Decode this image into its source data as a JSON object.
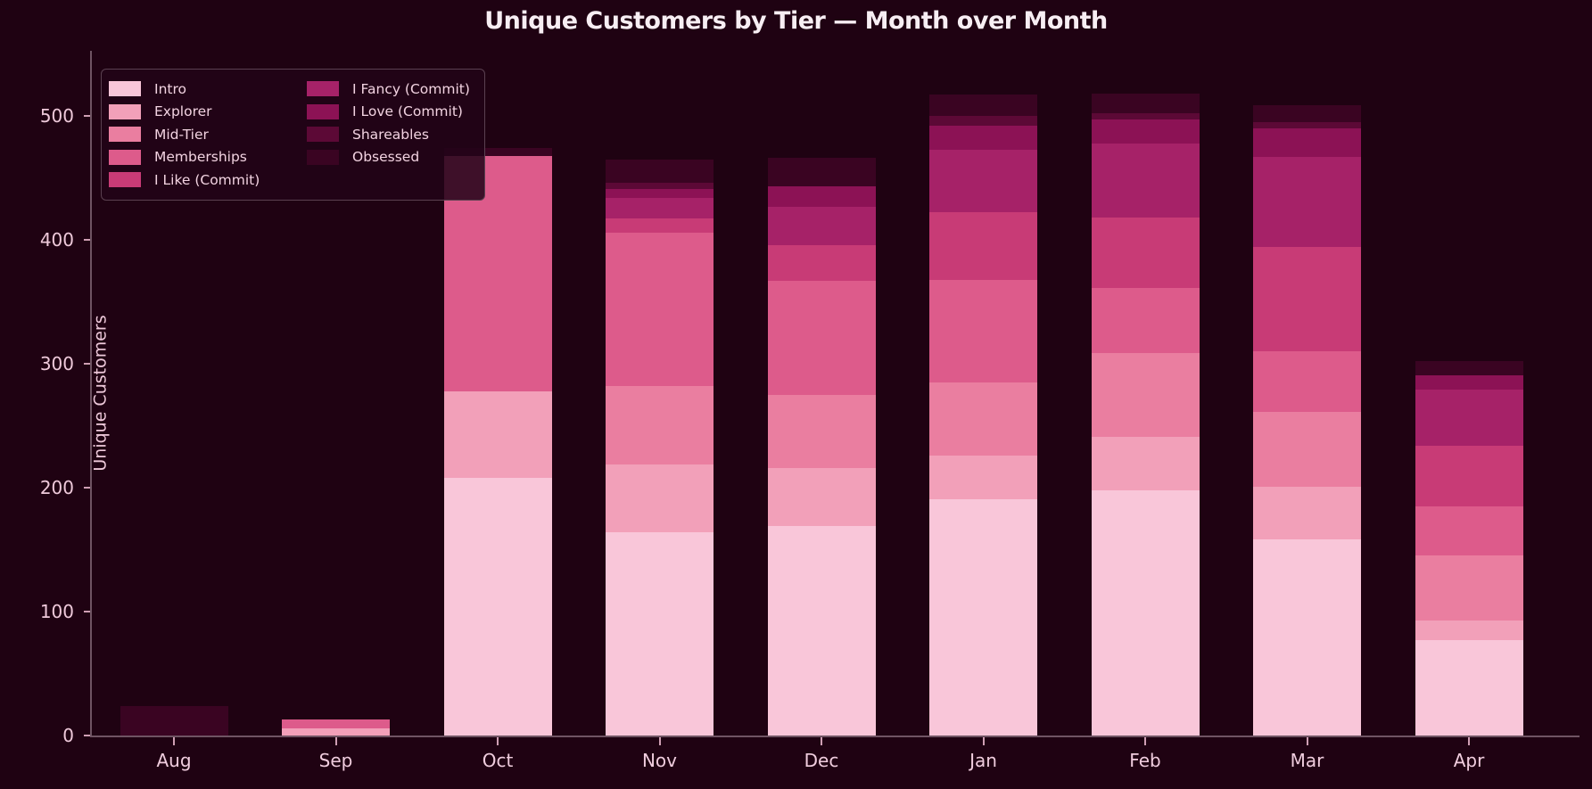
{
  "title": "Unique Customers by Tier — Month over Month",
  "ylabel": "Unique Customers",
  "colors": {
    "background": "#1f0212",
    "axis_spine": "#6f5463",
    "tick_mark": "#cf9fb4",
    "y_tick_label": "#eec9da",
    "x_tick_label": "#f0cdde",
    "title_text": "#f7eef3",
    "legend_border": "#5a4050",
    "legend_background": "rgba(34,4,24,0.85)",
    "legend_text": "#f2d3e1"
  },
  "chart_data": {
    "type": "bar",
    "stacked": true,
    "title": "Unique Customers by Tier — Month over Month",
    "xlabel": "",
    "ylabel": "Unique Customers",
    "categories": [
      "Aug",
      "Sep",
      "Oct",
      "Nov",
      "Dec",
      "Jan",
      "Feb",
      "Mar",
      "Apr"
    ],
    "series": [
      {
        "name": "Intro",
        "color": "#f9c6d9",
        "values": [
          0,
          0,
          208,
          164,
          169,
          191,
          198,
          158,
          77
        ]
      },
      {
        "name": "Explorer",
        "color": "#f2a0b9",
        "values": [
          0,
          6,
          70,
          55,
          47,
          35,
          43,
          43,
          16
        ]
      },
      {
        "name": "Mid-Tier",
        "color": "#ea7ea0",
        "values": [
          0,
          0,
          0,
          63,
          59,
          59,
          68,
          60,
          52
        ]
      },
      {
        "name": "Memberships",
        "color": "#dd5b8b",
        "values": [
          0,
          7,
          190,
          124,
          92,
          83,
          52,
          49,
          40
        ]
      },
      {
        "name": "I Like (Commit)",
        "color": "#c83b76",
        "values": [
          0,
          0,
          0,
          11,
          29,
          54,
          57,
          84,
          49
        ]
      },
      {
        "name": "I Fancy (Commit)",
        "color": "#a62268",
        "values": [
          0,
          0,
          0,
          17,
          31,
          51,
          60,
          73,
          45
        ]
      },
      {
        "name": "I Love (Commit)",
        "color": "#8c1255",
        "values": [
          0,
          0,
          0,
          7,
          16,
          19,
          19,
          23,
          12
        ]
      },
      {
        "name": "Shareables",
        "color": "#5c0936",
        "values": [
          0,
          0,
          0,
          5,
          0,
          8,
          5,
          5,
          0
        ]
      },
      {
        "name": "Obsessed",
        "color": "#3a0422",
        "values": [
          24,
          0,
          6,
          19,
          23,
          17,
          16,
          14,
          11
        ]
      }
    ],
    "totals": [
      24,
      13,
      474,
      465,
      466,
      517,
      518,
      509,
      302
    ],
    "ylim": [
      0,
      552
    ],
    "yticks": [
      0,
      100,
      200,
      300,
      400,
      500
    ],
    "grid": false,
    "legend_position": "upper left",
    "legend_columns": 2
  }
}
